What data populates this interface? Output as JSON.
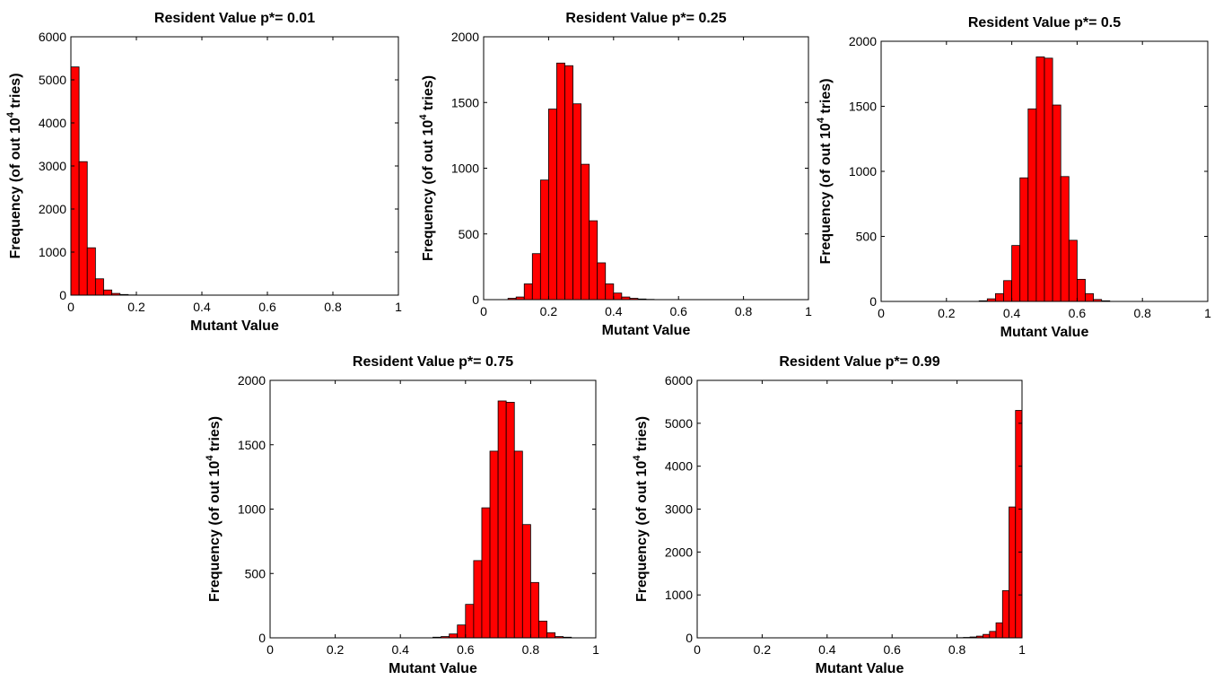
{
  "colors": {
    "bar_fill": "#ff0000",
    "bar_edge": "#000000",
    "axes": "#000000",
    "background": "#ffffff"
  },
  "chart_data": [
    {
      "type": "bar",
      "title": "Resident Value p*= 0.01",
      "xlabel": "Mutant Value",
      "ylabel": {
        "prefix": "Frequency (of out 10",
        "sup": "4",
        "suffix": " tries)"
      },
      "xlim": [
        0,
        1
      ],
      "ylim": [
        0,
        6000
      ],
      "xticks": [
        "0",
        "0.2",
        "0.4",
        "0.6",
        "0.8",
        "1"
      ],
      "yticks": [
        "0",
        "1000",
        "2000",
        "3000",
        "4000",
        "5000",
        "6000"
      ],
      "bin_width": 0.025,
      "bin_starts": [
        0,
        0.025,
        0.05,
        0.075,
        0.1,
        0.125,
        0.15,
        0.175
      ],
      "values": [
        5300,
        3100,
        1100,
        380,
        120,
        40,
        15,
        5
      ]
    },
    {
      "type": "bar",
      "title": "Resident Value p*= 0.25",
      "xlabel": "Mutant Value",
      "ylabel": {
        "prefix": "Frequency (of out 10",
        "sup": "4",
        "suffix": " tries)"
      },
      "xlim": [
        0,
        1
      ],
      "ylim": [
        0,
        2000
      ],
      "xticks": [
        "0",
        "0.2",
        "0.4",
        "0.6",
        "0.8",
        "1"
      ],
      "yticks": [
        "0",
        "500",
        "1000",
        "1500",
        "2000"
      ],
      "bin_width": 0.025,
      "bin_starts": [
        0.075,
        0.1,
        0.125,
        0.15,
        0.175,
        0.2,
        0.225,
        0.25,
        0.275,
        0.3,
        0.325,
        0.35,
        0.375,
        0.4,
        0.425,
        0.45,
        0.475,
        0.5
      ],
      "values": [
        10,
        20,
        120,
        350,
        910,
        1450,
        1800,
        1780,
        1490,
        1030,
        600,
        280,
        120,
        50,
        20,
        10,
        5,
        2
      ]
    },
    {
      "type": "bar",
      "title": "Resident Value p*= 0.5",
      "xlabel": "Mutant Value",
      "ylabel": {
        "prefix": "Frequency (of out 10",
        "sup": "4",
        "suffix": " tries)"
      },
      "xlim": [
        0,
        1
      ],
      "ylim": [
        0,
        2000
      ],
      "xticks": [
        "0",
        "0.2",
        "0.4",
        "0.6",
        "0.8",
        "1"
      ],
      "yticks": [
        "0",
        "500",
        "1000",
        "1500",
        "2000"
      ],
      "bin_width": 0.025,
      "bin_starts": [
        0.3,
        0.325,
        0.35,
        0.375,
        0.4,
        0.425,
        0.45,
        0.475,
        0.5,
        0.525,
        0.55,
        0.575,
        0.6,
        0.625,
        0.65,
        0.675
      ],
      "values": [
        5,
        20,
        60,
        160,
        430,
        950,
        1480,
        1880,
        1870,
        1510,
        960,
        470,
        170,
        60,
        15,
        5
      ]
    },
    {
      "type": "bar",
      "title": "Resident Value p*= 0.75",
      "xlabel": "Mutant Value",
      "ylabel": {
        "prefix": "Frequency (of out 10",
        "sup": "4",
        "suffix": " tries)"
      },
      "xlim": [
        0,
        1
      ],
      "ylim": [
        0,
        2000
      ],
      "xticks": [
        "0",
        "0.2",
        "0.4",
        "0.6",
        "0.8",
        "1"
      ],
      "yticks": [
        "0",
        "500",
        "1000",
        "1500",
        "2000"
      ],
      "bin_width": 0.025,
      "bin_starts": [
        0.5,
        0.525,
        0.55,
        0.575,
        0.6,
        0.625,
        0.65,
        0.675,
        0.7,
        0.725,
        0.75,
        0.775,
        0.8,
        0.825,
        0.85,
        0.875,
        0.9
      ],
      "values": [
        5,
        10,
        30,
        100,
        260,
        600,
        1010,
        1450,
        1840,
        1830,
        1450,
        880,
        430,
        130,
        40,
        10,
        5
      ]
    },
    {
      "type": "bar",
      "title": "Resident Value p*= 0.99",
      "xlabel": "Mutant Value",
      "ylabel": {
        "prefix": "Frequency (of out 10",
        "sup": "4",
        "suffix": " tries)"
      },
      "xlim": [
        0,
        1
      ],
      "ylim": [
        0,
        6000
      ],
      "xticks": [
        "0",
        "0.2",
        "0.4",
        "0.6",
        "0.8",
        "1"
      ],
      "yticks": [
        "0",
        "1000",
        "2000",
        "3000",
        "4000",
        "5000",
        "6000"
      ],
      "bin_width": 0.02,
      "bin_starts": [
        0.8,
        0.82,
        0.84,
        0.86,
        0.88,
        0.9,
        0.92,
        0.94,
        0.96,
        0.98
      ],
      "values": [
        5,
        10,
        20,
        40,
        80,
        150,
        350,
        1100,
        3050,
        5300
      ]
    }
  ]
}
